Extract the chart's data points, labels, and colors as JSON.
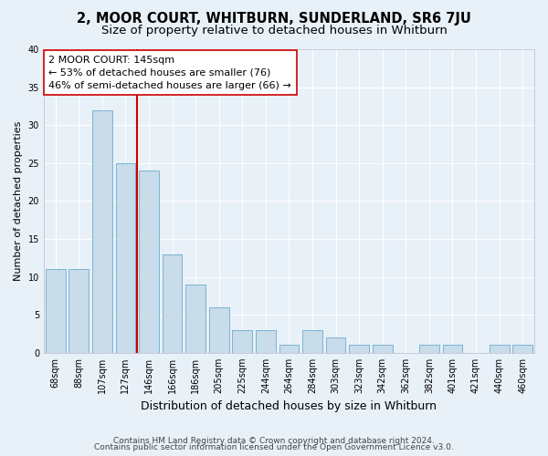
{
  "title": "2, MOOR COURT, WHITBURN, SUNDERLAND, SR6 7JU",
  "subtitle": "Size of property relative to detached houses in Whitburn",
  "xlabel": "Distribution of detached houses by size in Whitburn",
  "ylabel": "Number of detached properties",
  "footer_line1": "Contains HM Land Registry data © Crown copyright and database right 2024.",
  "footer_line2": "Contains public sector information licensed under the Open Government Licence v3.0.",
  "categories": [
    "68sqm",
    "88sqm",
    "107sqm",
    "127sqm",
    "146sqm",
    "166sqm",
    "186sqm",
    "205sqm",
    "225sqm",
    "244sqm",
    "264sqm",
    "284sqm",
    "303sqm",
    "323sqm",
    "342sqm",
    "362sqm",
    "382sqm",
    "401sqm",
    "421sqm",
    "440sqm",
    "460sqm"
  ],
  "values": [
    11,
    11,
    32,
    25,
    24,
    13,
    9,
    6,
    3,
    3,
    1,
    3,
    2,
    1,
    1,
    0,
    1,
    1,
    0,
    1,
    1
  ],
  "bar_color": "#c9dcea",
  "bar_edge_color": "#7ab4d4",
  "vline_color": "#cc0000",
  "vline_x": 4.0,
  "annotation_line1": "2 MOOR COURT: 145sqm",
  "annotation_line2": "← 53% of detached houses are smaller (76)",
  "annotation_line3": "46% of semi-detached houses are larger (66) →",
  "annotation_box_color": "#ffffff",
  "annotation_box_edge_color": "#cc0000",
  "ylim": [
    0,
    40
  ],
  "yticks": [
    0,
    5,
    10,
    15,
    20,
    25,
    30,
    35,
    40
  ],
  "background_color": "#e8f0f8",
  "plot_background_color": "#e8f0f8",
  "grid_color": "#ffffff",
  "title_fontsize": 10.5,
  "subtitle_fontsize": 9.5,
  "annotation_fontsize": 8,
  "tick_fontsize": 7,
  "xlabel_fontsize": 9,
  "ylabel_fontsize": 8,
  "footer_fontsize": 6.5
}
